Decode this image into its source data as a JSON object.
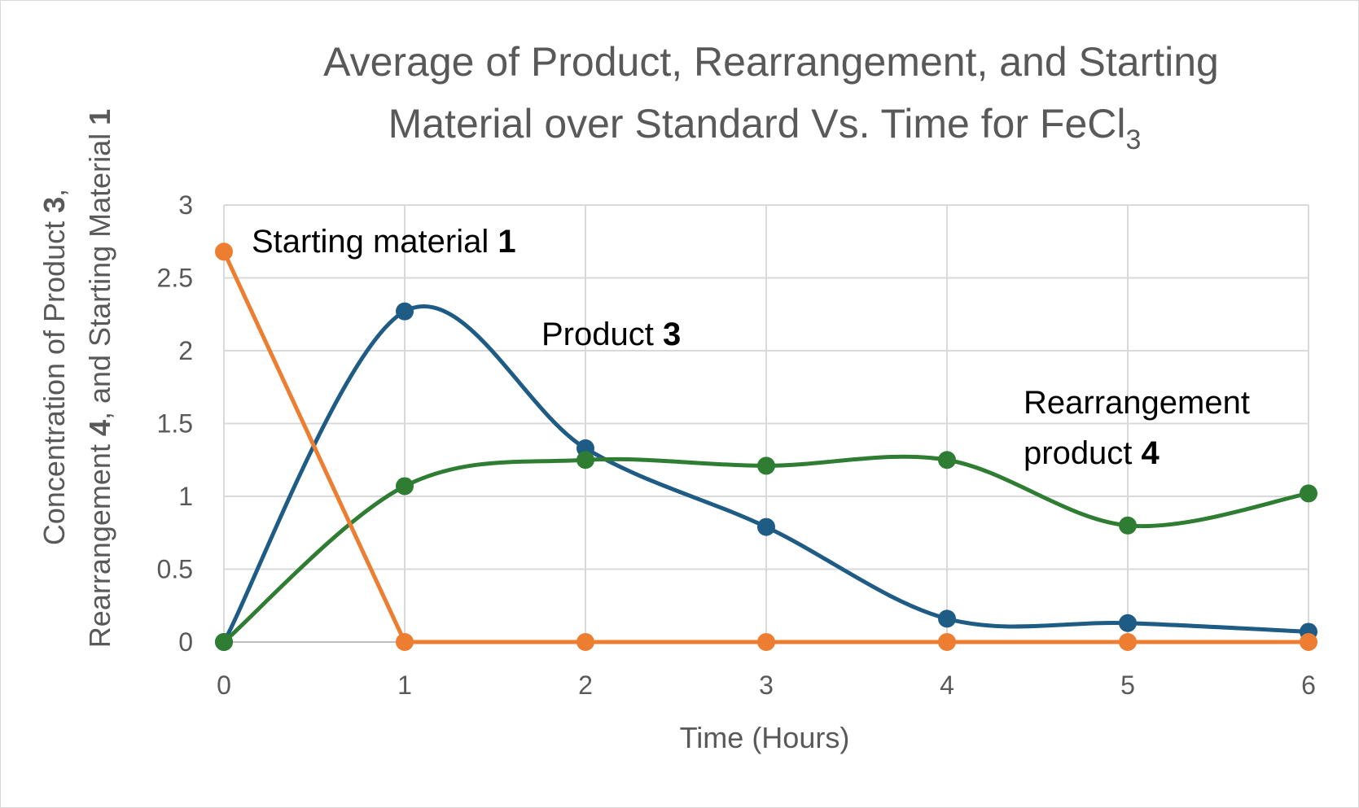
{
  "chart_data": {
    "type": "line",
    "title": {
      "line1": "Average of Product, Rearrangement, and Starting",
      "line2_main": "Material over Standard Vs. Time for FeCl",
      "line2_sub": "3"
    },
    "xlabel": "Time (Hours)",
    "ylabel": {
      "line1_a": "Concentration of Product ",
      "line1_b": "3",
      "line1_c": ",",
      "line2_a": "Rearrangement ",
      "line2_b": "4",
      "line2_c": ", and Starting Material ",
      "line2_d": "1"
    },
    "x": [
      0,
      1,
      2,
      3,
      4,
      5,
      6
    ],
    "xlim": [
      0,
      6
    ],
    "ylim": [
      0,
      3
    ],
    "x_ticks": [
      "0",
      "1",
      "2",
      "3",
      "4",
      "5",
      "6"
    ],
    "y_ticks": [
      "0",
      "0.5",
      "1",
      "1.5",
      "2",
      "2.5",
      "3"
    ],
    "grid": true,
    "series": [
      {
        "name": "Starting material 1",
        "color": "#ED7D31",
        "smooth": false,
        "values": [
          2.68,
          0,
          0,
          0,
          0,
          0,
          0
        ]
      },
      {
        "name": "Product 3",
        "color": "#1F5C85",
        "smooth": true,
        "values": [
          0,
          2.27,
          1.33,
          0.79,
          0.16,
          0.13,
          0.07
        ]
      },
      {
        "name": "Rearrangement product 4",
        "color": "#2E7D32",
        "smooth": true,
        "values": [
          0,
          1.07,
          1.25,
          1.21,
          1.25,
          0.8,
          1.02
        ]
      }
    ],
    "annotations": {
      "starting": {
        "text": "Starting material ",
        "bold": "1"
      },
      "product": {
        "text": "Product ",
        "bold": "3"
      },
      "rearr_line1": {
        "text": "Rearrangement"
      },
      "rearr_line2": {
        "text": "product ",
        "bold": "4"
      }
    }
  }
}
